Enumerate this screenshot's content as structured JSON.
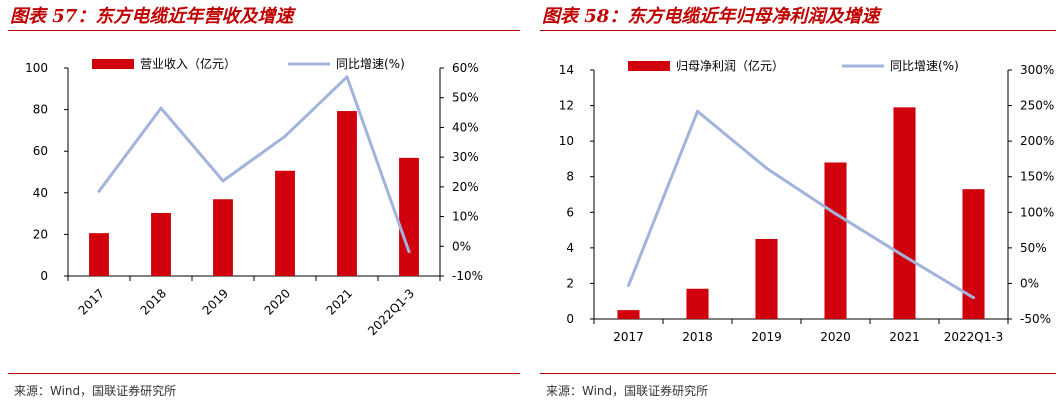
{
  "panels": [
    {
      "title": "图表 57：东方电缆近年营收及增速",
      "source": "来源：Wind，国联证券研究所"
    },
    {
      "title": "图表 58：东方电缆近年归母净利润及增速",
      "source": "来源：Wind，国联证券研究所"
    }
  ],
  "colors": {
    "bar": "#d0000c",
    "line": "#a2b4dc",
    "title": "#c00000"
  },
  "chart_data": [
    {
      "type": "bar",
      "title": "",
      "categories": [
        "2017",
        "2018",
        "2019",
        "2020",
        "2021",
        "2022Q1-3"
      ],
      "series": [
        {
          "name": "营业收入（亿元）",
          "type": "bar",
          "axis": "left",
          "values": [
            20.6,
            30.3,
            36.9,
            50.6,
            79.3,
            56.8
          ]
        },
        {
          "name": "同比增速(%)",
          "type": "line",
          "axis": "right",
          "values": [
            18.5,
            46.5,
            22,
            37,
            57,
            -1.8
          ]
        }
      ],
      "yleft": {
        "lim": [
          0,
          100
        ],
        "ticks": [
          0,
          20,
          40,
          60,
          80,
          100
        ],
        "labels": [
          "0",
          "20",
          "40",
          "60",
          "80",
          "100"
        ]
      },
      "yright": {
        "lim": [
          -10,
          60
        ],
        "ticks": [
          -10,
          0,
          10,
          20,
          30,
          40,
          50,
          60
        ],
        "labels": [
          "-10%",
          "0%",
          "10%",
          "20%",
          "30%",
          "40%",
          "50%",
          "60%"
        ]
      },
      "legend": "top",
      "grid": false
    },
    {
      "type": "bar",
      "title": "",
      "categories": [
        "2017",
        "2018",
        "2019",
        "2020",
        "2021",
        "2022Q1-3"
      ],
      "series": [
        {
          "name": "归母净利润（亿元）",
          "type": "bar",
          "axis": "left",
          "values": [
            0.5,
            1.7,
            4.5,
            8.8,
            11.9,
            7.3
          ]
        },
        {
          "name": "同比增速(%)",
          "type": "line",
          "axis": "right",
          "values": [
            -3,
            242,
            162,
            98,
            38,
            -20
          ]
        }
      ],
      "yleft": {
        "lim": [
          0,
          14
        ],
        "ticks": [
          0,
          2,
          4,
          6,
          8,
          10,
          12,
          14
        ],
        "labels": [
          "0",
          "2",
          "4",
          "6",
          "8",
          "10",
          "12",
          "14"
        ]
      },
      "yright": {
        "lim": [
          -50,
          300
        ],
        "ticks": [
          -50,
          0,
          50,
          100,
          150,
          200,
          250,
          300
        ],
        "labels": [
          "-50%",
          "0%",
          "50%",
          "100%",
          "150%",
          "200%",
          "250%",
          "300%"
        ]
      },
      "legend": "top",
      "grid": false
    }
  ]
}
